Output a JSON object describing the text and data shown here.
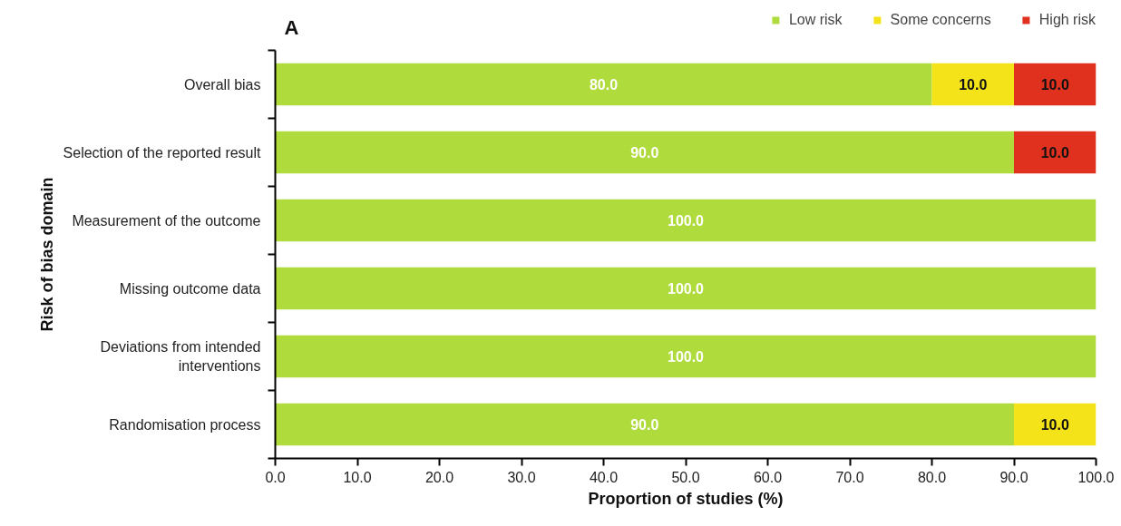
{
  "chart_data": {
    "type": "bar",
    "orientation": "horizontal",
    "stacked": true,
    "categories": [
      "Overall bias",
      "Selection of the reported result",
      "Measurement of the outcome",
      "Missing outcome data",
      "Deviations from intended\ninterventions",
      "Randomisation process"
    ],
    "series": [
      {
        "name": "Low risk",
        "color": "#b0db3d",
        "values": [
          80.0,
          90.0,
          100.0,
          100.0,
          100.0,
          90.0
        ],
        "value_labels": [
          "80.0",
          "90.0",
          "100.0",
          "100.0",
          "100.0",
          "90.0"
        ]
      },
      {
        "name": "Some concerns",
        "color": "#f5e31a",
        "values": [
          10.0,
          null,
          null,
          null,
          null,
          10.0
        ],
        "value_labels": [
          "10.0",
          null,
          null,
          null,
          null,
          "10.0"
        ]
      },
      {
        "name": "High risk",
        "color": "#e0301e",
        "values": [
          10.0,
          10.0,
          null,
          null,
          null,
          null
        ],
        "value_labels": [
          "10.0",
          "10.0",
          null,
          null,
          null,
          null
        ]
      }
    ],
    "xlim": [
      0,
      100
    ],
    "xticks": [
      {
        "value": 0,
        "label": "0.0"
      },
      {
        "value": 10,
        "label": "10.0"
      },
      {
        "value": 20,
        "label": "20.0"
      },
      {
        "value": 30,
        "label": "30.0"
      },
      {
        "value": 40,
        "label": "40.0"
      },
      {
        "value": 50,
        "label": "50.0"
      },
      {
        "value": 60,
        "label": "60.0"
      },
      {
        "value": 70,
        "label": "70.0"
      },
      {
        "value": 80,
        "label": "80.0"
      },
      {
        "value": 90,
        "label": "90.0"
      },
      {
        "value": 100,
        "label": "100.0"
      }
    ],
    "xlabel": "Proportion of studies (%)",
    "ylabel": "Risk of bias domain",
    "annotations": [
      "A"
    ],
    "legend": "top right",
    "grid": false
  }
}
